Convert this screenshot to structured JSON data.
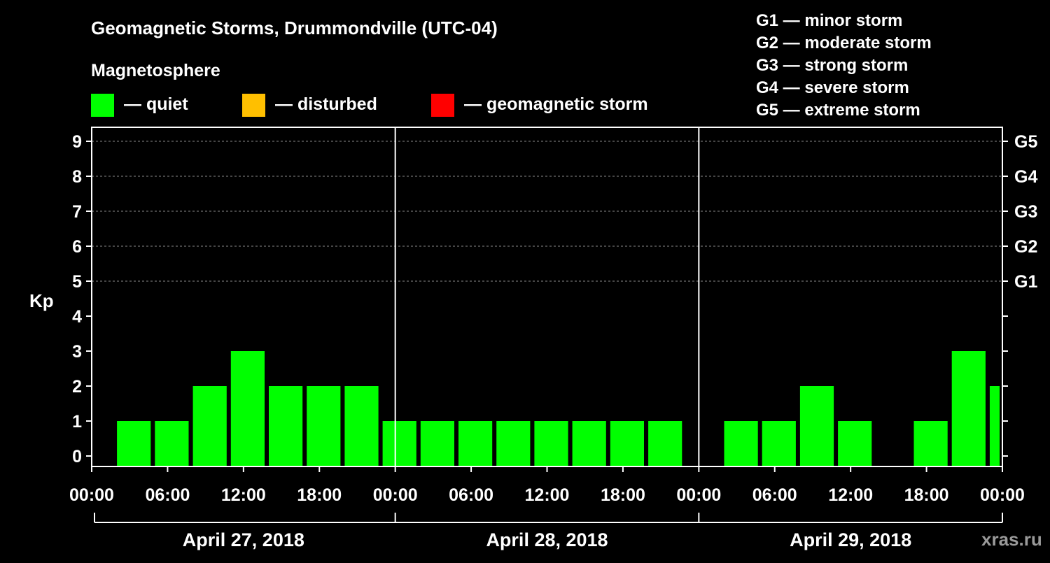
{
  "title": "Geomagnetic Storms, Drummondville (UTC-04)",
  "legend": {
    "heading": "Magnetosphere",
    "items": [
      {
        "label": "— quiet",
        "color": "#00ff00"
      },
      {
        "label": "— disturbed",
        "color": "#ffbf00"
      },
      {
        "label": "— geomagnetic storm",
        "color": "#ff0000"
      }
    ]
  },
  "storm_scale": [
    "G1 — minor storm",
    "G2 — moderate storm",
    "G3 — strong storm",
    "G4 — severe storm",
    "G5 — extreme storm"
  ],
  "watermark": "xras.ru",
  "chart_data": {
    "type": "bar",
    "ylabel": "Kp",
    "ylim": [
      0,
      9
    ],
    "yticks": [
      "0",
      "1",
      "2",
      "3",
      "4",
      "5",
      "6",
      "7",
      "8",
      "9"
    ],
    "right_ticks": [
      {
        "kp": 5,
        "label": "G1"
      },
      {
        "kp": 6,
        "label": "G2"
      },
      {
        "kp": 7,
        "label": "G3"
      },
      {
        "kp": 8,
        "label": "G4"
      },
      {
        "kp": 9,
        "label": "G5"
      }
    ],
    "x_tick_labels": [
      "00:00",
      "06:00",
      "12:00",
      "18:00",
      "00:00",
      "06:00",
      "12:00",
      "18:00",
      "00:00",
      "06:00",
      "12:00",
      "18:00",
      "00:00"
    ],
    "days": [
      "April 27, 2018",
      "April 28, 2018",
      "April 29, 2018"
    ],
    "grid": "dashed at Kp 5-9",
    "bar_interval_hours": 3,
    "bar_start_hour": 2,
    "series": [
      {
        "values": [
          1,
          1,
          2,
          3,
          2,
          2,
          2,
          1,
          1,
          1,
          1,
          1,
          1,
          1,
          1,
          0,
          1,
          1,
          2,
          1,
          0,
          1,
          3,
          2
        ]
      }
    ]
  }
}
